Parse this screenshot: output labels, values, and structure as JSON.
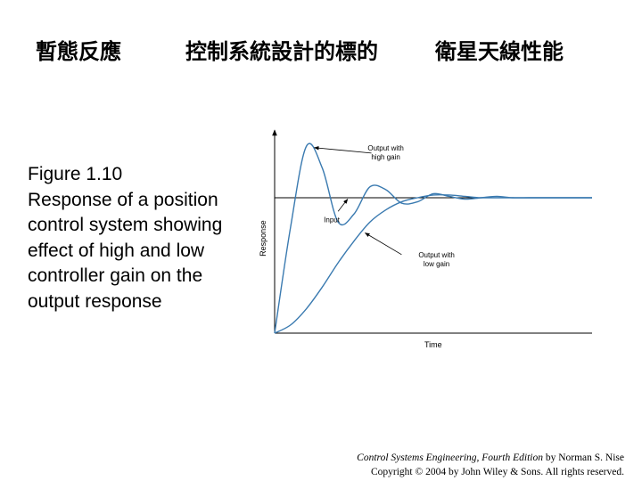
{
  "header": {
    "title_left": "暫態反應",
    "title_mid": "控制系統設計的標的",
    "title_right": "衛星天線性能"
  },
  "caption": {
    "figure": "Figure 1.10",
    "text": "Response of a position control system showing effect of high and low controller gain on the output response"
  },
  "credit": {
    "book": "Control Systems Engineering, Fourth Edition",
    "author": " by Norman S. Nise",
    "copyright": "Copyright © 2004 by John Wiley & Sons. All rights reserved."
  },
  "colors": {
    "curve": "#3a7ab0",
    "axis": "#000000",
    "input": "#000000"
  },
  "chart_data": {
    "type": "line",
    "xlabel": "Time",
    "ylabel": "Response",
    "xlim": [
      0,
      10
    ],
    "ylim": [
      0,
      1.5
    ],
    "grid": false,
    "series": [
      {
        "name": "Input",
        "step_value": 1.0
      },
      {
        "name": "Output with high gain",
        "x": [
          0,
          0.5,
          1.0,
          1.5,
          2.0,
          2.5,
          3.0,
          3.5,
          4.0,
          4.5,
          5.0,
          5.5,
          6.0,
          6.5,
          7.0,
          7.5,
          8.0,
          8.5,
          9.0,
          9.5,
          10.0
        ],
        "y": [
          0,
          0.78,
          1.38,
          1.22,
          0.82,
          0.88,
          1.08,
          1.06,
          0.96,
          0.97,
          1.03,
          1.01,
          0.99,
          1.0,
          1.01,
          1.0,
          1.0,
          1.0,
          1.0,
          1.0,
          1.0
        ]
      },
      {
        "name": "Output with low gain",
        "x": [
          0,
          0.5,
          1.0,
          1.5,
          2.0,
          2.5,
          3.0,
          3.5,
          4.0,
          4.5,
          5.0,
          5.5,
          6.0,
          6.5,
          7.0,
          7.5,
          8.0,
          8.5,
          9.0,
          9.5,
          10.0
        ],
        "y": [
          0,
          0.06,
          0.18,
          0.34,
          0.52,
          0.68,
          0.82,
          0.91,
          0.97,
          1.0,
          1.02,
          1.02,
          1.01,
          1.0,
          1.0,
          1.0,
          1.0,
          1.0,
          1.0,
          1.0,
          1.0
        ]
      }
    ],
    "annotations": [
      {
        "lines": [
          "Output with",
          "high gain"
        ],
        "target": "Output with high gain"
      },
      {
        "lines": [
          "Input"
        ],
        "target": "Input"
      },
      {
        "lines": [
          "Output with",
          "low gain"
        ],
        "target": "Output with low gain"
      }
    ]
  }
}
